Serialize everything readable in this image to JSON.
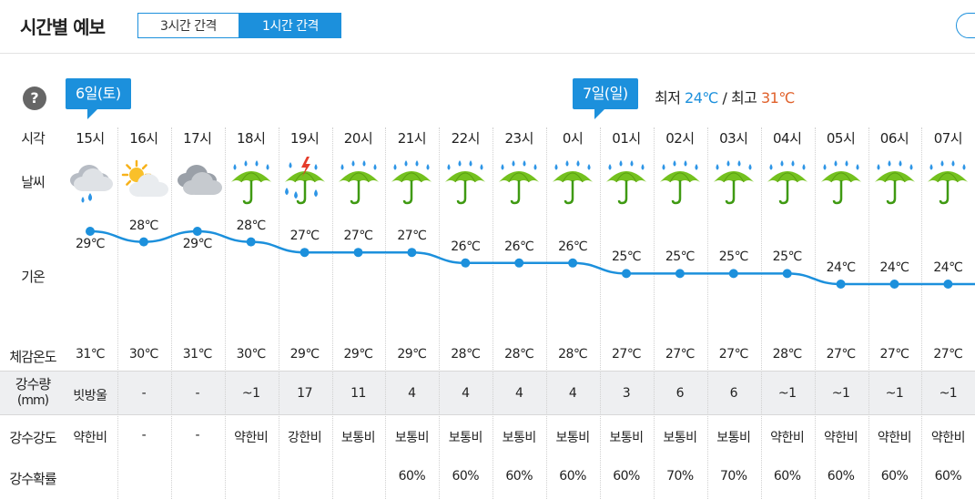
{
  "header": {
    "title": "시간별 예보",
    "tabs": [
      {
        "label": "3시간 간격",
        "active": false
      },
      {
        "label": "1시간 간격",
        "active": true
      }
    ]
  },
  "help_label": "?",
  "days": [
    {
      "label": "6일(토)"
    },
    {
      "label": "7일(일)"
    }
  ],
  "minmax": {
    "min_label": "최저",
    "min_value": "24℃",
    "separator": "/",
    "max_label": "최고",
    "max_value": "31℃"
  },
  "row_labels": {
    "time": "시각",
    "weather": "날씨",
    "temp": "기온",
    "feels": "체감온도",
    "precip_line1": "강수량",
    "precip_line2": "(mm)",
    "intensity": "강수강도",
    "prob": "강수확률"
  },
  "colors": {
    "accent": "#1c90dc",
    "max": "#e0602a",
    "band": "#eeeff1"
  },
  "hours": [
    {
      "time": "15시",
      "icon": "cloud-rain-icon",
      "temp": 29,
      "temp_label": "29℃",
      "feels": "31℃",
      "precip": "빗방울",
      "intensity": "약한비",
      "prob": ""
    },
    {
      "time": "16시",
      "icon": "sun-cloud-icon",
      "temp": 28,
      "temp_label": "28℃",
      "feels": "30℃",
      "precip": "-",
      "intensity": "-",
      "prob": ""
    },
    {
      "time": "17시",
      "icon": "cloudy-icon",
      "temp": 29,
      "temp_label": "29℃",
      "feels": "31℃",
      "precip": "-",
      "intensity": "-",
      "prob": ""
    },
    {
      "time": "18시",
      "icon": "umbrella-rain-icon",
      "temp": 28,
      "temp_label": "28℃",
      "feels": "30℃",
      "precip": "~1",
      "intensity": "약한비",
      "prob": ""
    },
    {
      "time": "19시",
      "icon": "thunder-rain-icon",
      "temp": 27,
      "temp_label": "27℃",
      "feels": "29℃",
      "precip": "17",
      "intensity": "강한비",
      "prob": ""
    },
    {
      "time": "20시",
      "icon": "umbrella-rain-icon",
      "temp": 27,
      "temp_label": "27℃",
      "feels": "29℃",
      "precip": "11",
      "intensity": "보통비",
      "prob": ""
    },
    {
      "time": "21시",
      "icon": "umbrella-rain-icon",
      "temp": 27,
      "temp_label": "27℃",
      "feels": "29℃",
      "precip": "4",
      "intensity": "보통비",
      "prob": "60%"
    },
    {
      "time": "22시",
      "icon": "umbrella-rain-icon",
      "temp": 26,
      "temp_label": "26℃",
      "feels": "28℃",
      "precip": "4",
      "intensity": "보통비",
      "prob": "60%"
    },
    {
      "time": "23시",
      "icon": "umbrella-rain-icon",
      "temp": 26,
      "temp_label": "26℃",
      "feels": "28℃",
      "precip": "4",
      "intensity": "보통비",
      "prob": "60%"
    },
    {
      "time": "0시",
      "icon": "umbrella-rain-icon",
      "temp": 26,
      "temp_label": "26℃",
      "feels": "28℃",
      "precip": "4",
      "intensity": "보통비",
      "prob": "60%"
    },
    {
      "time": "01시",
      "icon": "umbrella-rain-icon",
      "temp": 25,
      "temp_label": "25℃",
      "feels": "27℃",
      "precip": "3",
      "intensity": "보통비",
      "prob": "60%"
    },
    {
      "time": "02시",
      "icon": "umbrella-rain-icon",
      "temp": 25,
      "temp_label": "25℃",
      "feels": "27℃",
      "precip": "6",
      "intensity": "보통비",
      "prob": "70%"
    },
    {
      "time": "03시",
      "icon": "umbrella-rain-icon",
      "temp": 25,
      "temp_label": "25℃",
      "feels": "27℃",
      "precip": "6",
      "intensity": "보통비",
      "prob": "70%"
    },
    {
      "time": "04시",
      "icon": "umbrella-rain-icon",
      "temp": 25,
      "temp_label": "25℃",
      "feels": "28℃",
      "precip": "~1",
      "intensity": "약한비",
      "prob": "60%"
    },
    {
      "time": "05시",
      "icon": "umbrella-rain-icon",
      "temp": 24,
      "temp_label": "24℃",
      "feels": "27℃",
      "precip": "~1",
      "intensity": "약한비",
      "prob": "60%"
    },
    {
      "time": "06시",
      "icon": "umbrella-rain-icon",
      "temp": 24,
      "temp_label": "24℃",
      "feels": "27℃",
      "precip": "~1",
      "intensity": "약한비",
      "prob": "60%"
    },
    {
      "time": "07시",
      "icon": "umbrella-rain-icon",
      "temp": 24,
      "temp_label": "24℃",
      "feels": "27℃",
      "precip": "~1",
      "intensity": "약한비",
      "prob": "60%"
    }
  ]
}
